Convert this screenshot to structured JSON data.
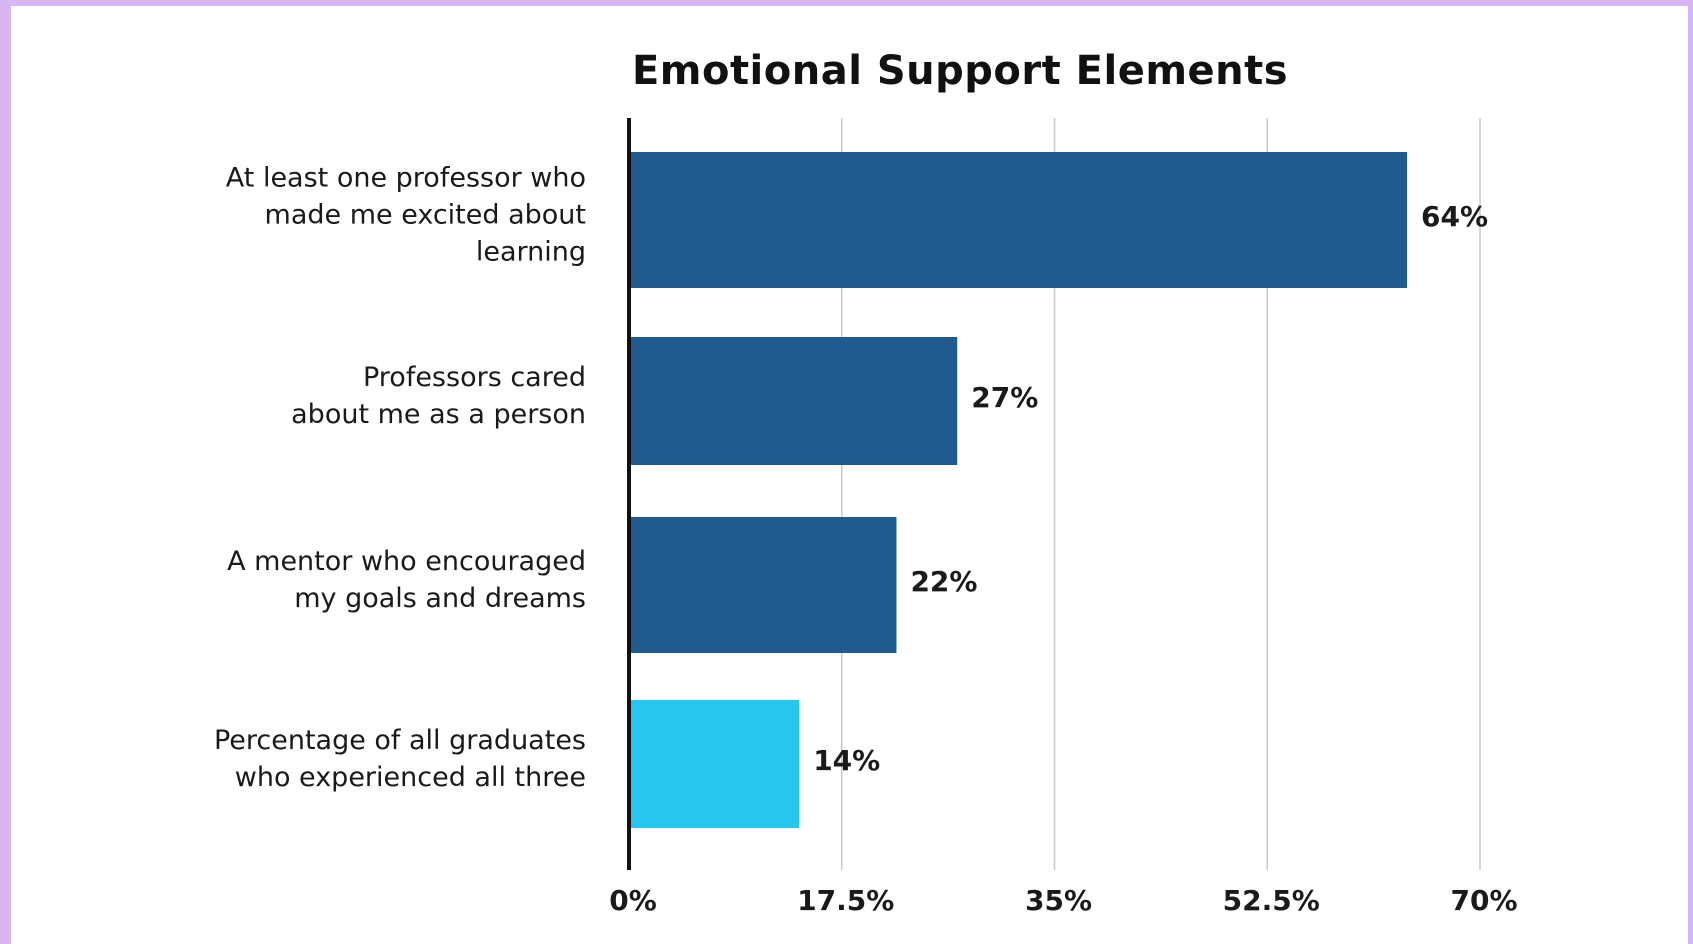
{
  "chart_data": {
    "type": "bar",
    "orientation": "horizontal",
    "title": "Emotional Support Elements",
    "categories": [
      [
        "At least one professor who",
        "made me excited about",
        "learning"
      ],
      [
        "Professors cared",
        "about me as a person"
      ],
      [
        "A mentor who encouraged",
        "my goals and dreams"
      ],
      [
        "Percentage of all graduates",
        "who experienced all three"
      ]
    ],
    "values": [
      64,
      27,
      22,
      14
    ],
    "value_labels": [
      "64%",
      "27%",
      "22%",
      "14%"
    ],
    "bar_colors": [
      "#215a8c",
      "#215a8c",
      "#215a8c",
      "#26c6f0"
    ],
    "xlim": [
      0,
      70
    ],
    "xticks": [
      0,
      17.5,
      35,
      52.5,
      70
    ],
    "xtick_labels": [
      "0%",
      "17.5%",
      "35%",
      "52.5%",
      "70%"
    ],
    "grid": "vertical",
    "xlabel": "",
    "ylabel": ""
  },
  "colors": {
    "border": "#d8b6f3",
    "background": "#ffffff",
    "grid": "#c8c8c8",
    "axis": "#111111"
  }
}
